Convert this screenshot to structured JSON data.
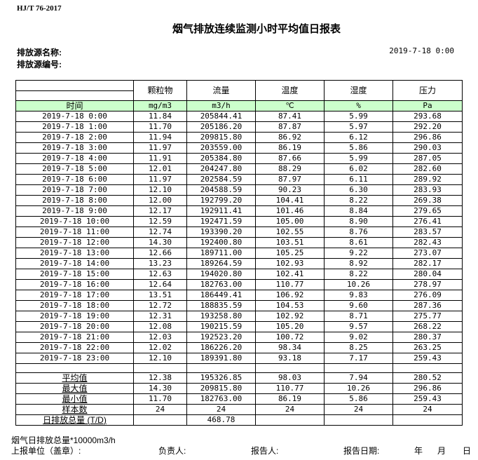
{
  "standard": "HJ/T  76-2017",
  "title": "烟气排放连续监测小时平均值日报表",
  "source_name_label": "排放源名称:",
  "source_code_label": "排放源编号:",
  "report_datetime": "2019-7-18 0:00",
  "table": {
    "headers": [
      "",
      "颗粒物",
      "流量",
      "温度",
      "湿度",
      "压力"
    ],
    "units": [
      "时间",
      "mg/m3",
      "m3/h",
      "℃",
      "%",
      "Pa"
    ],
    "rows": [
      [
        "2019-7-18 0:00",
        "11.84",
        "205844.41",
        "87.41",
        "5.99",
        "293.68"
      ],
      [
        "2019-7-18 1:00",
        "11.70",
        "205186.20",
        "87.87",
        "5.97",
        "292.20"
      ],
      [
        "2019-7-18 2:00",
        "11.94",
        "209815.80",
        "86.92",
        "6.12",
        "296.86"
      ],
      [
        "2019-7-18 3:00",
        "11.97",
        "203559.00",
        "86.19",
        "5.86",
        "290.03"
      ],
      [
        "2019-7-18 4:00",
        "11.91",
        "205384.80",
        "87.66",
        "5.99",
        "287.05"
      ],
      [
        "2019-7-18 5:00",
        "12.01",
        "204247.80",
        "88.29",
        "6.02",
        "282.60"
      ],
      [
        "2019-7-18 6:00",
        "11.97",
        "202584.59",
        "87.97",
        "6.11",
        "289.92"
      ],
      [
        "2019-7-18 7:00",
        "12.10",
        "204588.59",
        "90.23",
        "6.30",
        "283.93"
      ],
      [
        "2019-7-18 8:00",
        "12.00",
        "192799.20",
        "104.41",
        "8.22",
        "269.38"
      ],
      [
        "2019-7-18 9:00",
        "12.17",
        "192911.41",
        "101.46",
        "8.84",
        "279.65"
      ],
      [
        "2019-7-18 10:00",
        "12.59",
        "192471.59",
        "105.00",
        "8.90",
        "276.41"
      ],
      [
        "2019-7-18 11:00",
        "12.74",
        "193390.20",
        "102.55",
        "8.76",
        "283.57"
      ],
      [
        "2019-7-18 12:00",
        "14.30",
        "192400.80",
        "103.51",
        "8.61",
        "282.43"
      ],
      [
        "2019-7-18 13:00",
        "12.66",
        "189711.00",
        "105.25",
        "9.22",
        "273.07"
      ],
      [
        "2019-7-18 14:00",
        "13.23",
        "189264.59",
        "102.93",
        "8.92",
        "282.17"
      ],
      [
        "2019-7-18 15:00",
        "12.63",
        "194020.80",
        "102.41",
        "8.22",
        "280.04"
      ],
      [
        "2019-7-18 16:00",
        "12.64",
        "182763.00",
        "110.77",
        "10.26",
        "278.97"
      ],
      [
        "2019-7-18 17:00",
        "13.51",
        "186449.41",
        "106.92",
        "9.83",
        "276.09"
      ],
      [
        "2019-7-18 18:00",
        "12.72",
        "188835.59",
        "104.53",
        "9.60",
        "287.36"
      ],
      [
        "2019-7-18 19:00",
        "12.31",
        "193258.80",
        "102.92",
        "8.71",
        "275.77"
      ],
      [
        "2019-7-18 20:00",
        "12.08",
        "190215.59",
        "105.20",
        "9.57",
        "268.22"
      ],
      [
        "2019-7-18 21:00",
        "12.03",
        "192523.20",
        "100.72",
        "9.02",
        "280.37"
      ],
      [
        "2019-7-18 22:00",
        "12.02",
        "186226.20",
        "98.34",
        "8.25",
        "263.25"
      ],
      [
        "2019-7-18 23:00",
        "12.10",
        "189391.80",
        "93.18",
        "7.17",
        "259.43"
      ]
    ],
    "summary": [
      [
        "平均值",
        "12.38",
        "195326.85",
        "98.03",
        "7.94",
        "280.52"
      ],
      [
        "最大值",
        "14.30",
        "209815.80",
        "110.77",
        "10.26",
        "296.86"
      ],
      [
        "最小值",
        "11.70",
        "182763.00",
        "86.19",
        "5.86",
        "259.43"
      ],
      [
        "样本数",
        "24",
        "24",
        "24",
        "24",
        "24"
      ],
      [
        "日排放总量 (T/D)",
        "",
        "468.78",
        "",
        "",
        ""
      ]
    ]
  },
  "footer": {
    "note": "烟气日排放总量*10000m3/h",
    "unit_label": "上报单位（盖章）:",
    "responsible_label": "负责人:",
    "reporter_label": "报告人:",
    "report_date_label": "报告日期:",
    "year": "年",
    "month": "月",
    "day": "日"
  }
}
